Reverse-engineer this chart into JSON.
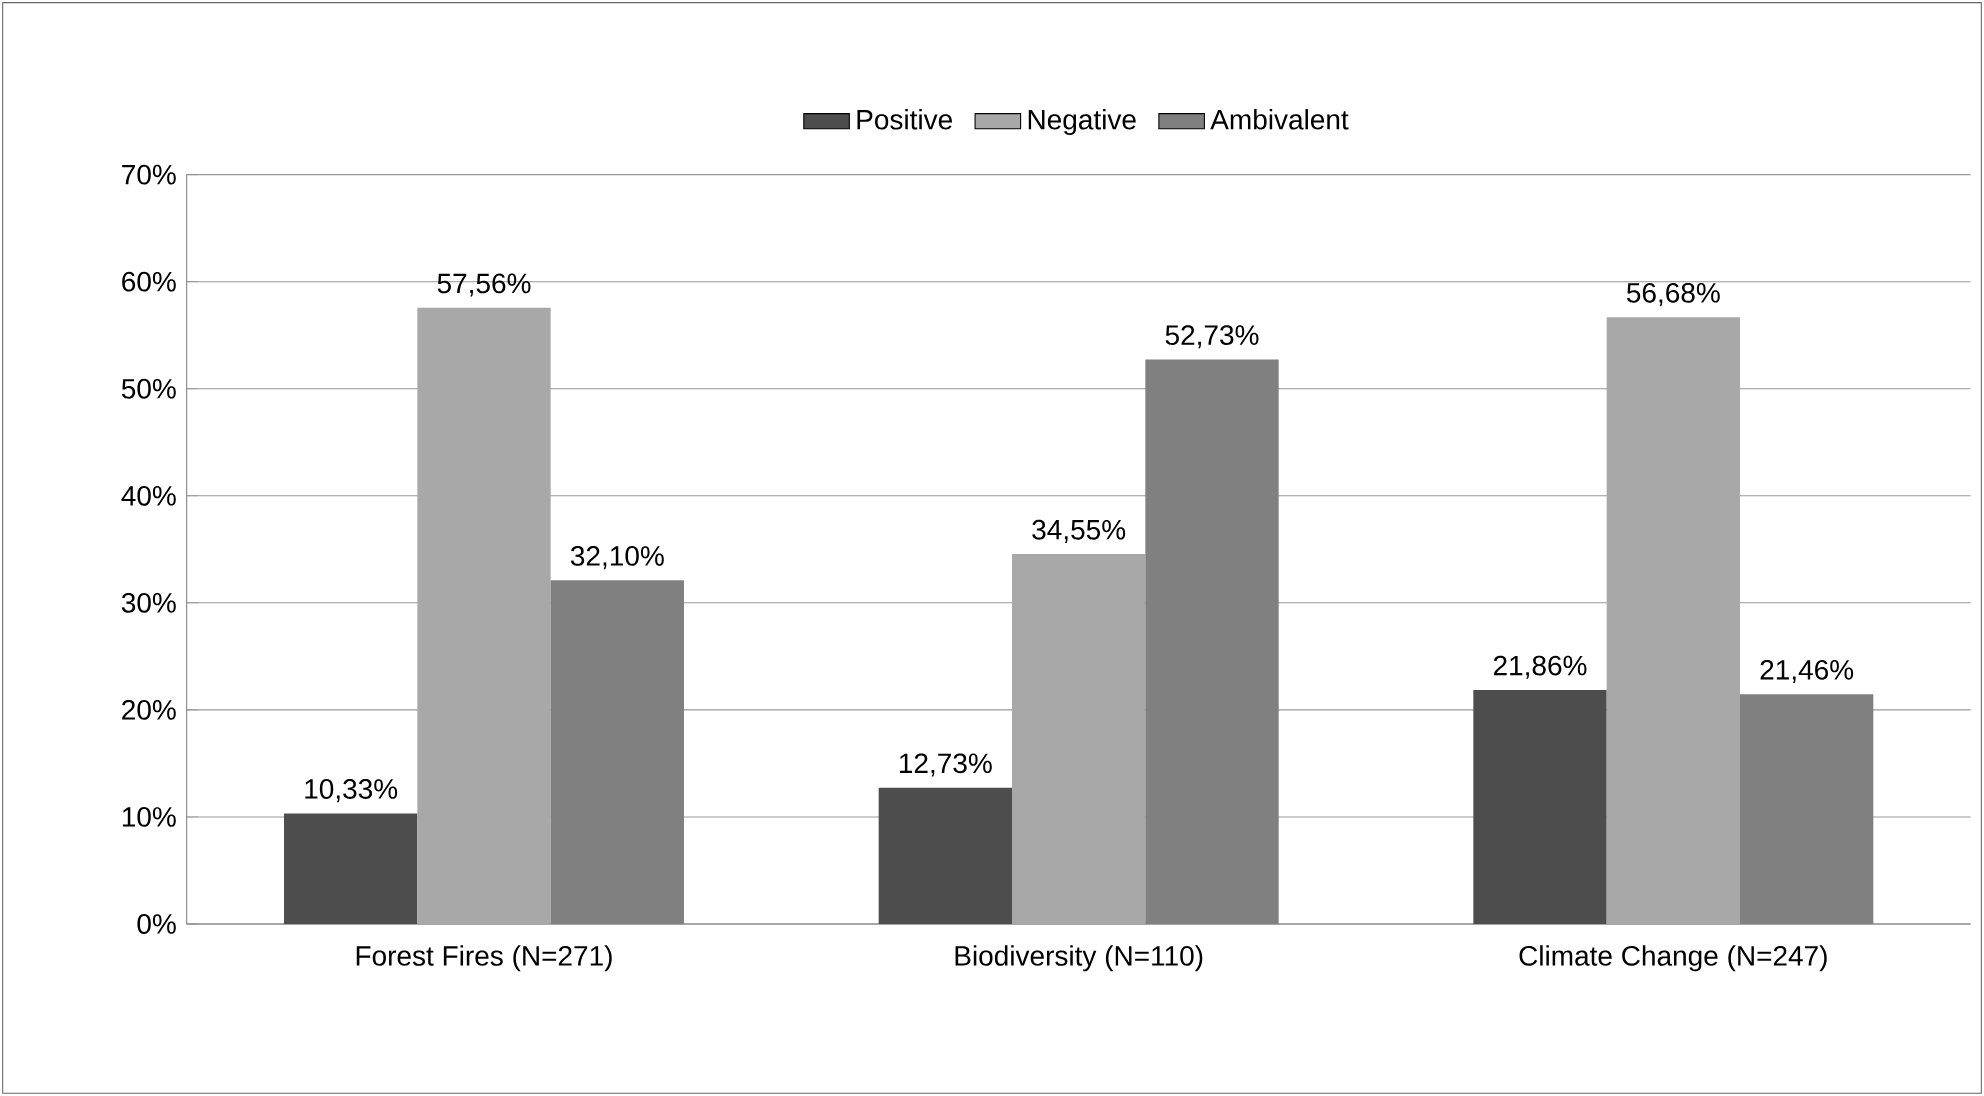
{
  "chart_data": {
    "type": "bar",
    "categories": [
      "Forest Fires (N=271)",
      "Biodiversity (N=110)",
      "Climate Change (N=247)"
    ],
    "series": [
      {
        "name": "Positive",
        "color": "#4d4d4d",
        "values": [
          10.33,
          12.73,
          21.86
        ],
        "value_labels": [
          "10,33%",
          "12,73%",
          "21,86%"
        ]
      },
      {
        "name": "Negative",
        "color": "#a8a8a8",
        "values": [
          57.56,
          34.55,
          56.68
        ],
        "value_labels": [
          "57,56%",
          "34,55%",
          "56,68%"
        ]
      },
      {
        "name": "Ambivalent",
        "color": "#808080",
        "values": [
          32.1,
          52.73,
          21.46
        ],
        "value_labels": [
          "32,10%",
          "52,73%",
          "21,46%"
        ]
      }
    ],
    "ylim": [
      0,
      70
    ],
    "yticks": [
      {
        "value": 0,
        "label": "0%"
      },
      {
        "value": 10,
        "label": "10%"
      },
      {
        "value": 20,
        "label": "20%"
      },
      {
        "value": 30,
        "label": "30%"
      },
      {
        "value": 40,
        "label": "40%"
      },
      {
        "value": 50,
        "label": "50%"
      },
      {
        "value": 60,
        "label": "60%"
      },
      {
        "value": 70,
        "label": "70%"
      }
    ],
    "grid": "y",
    "legend": "top"
  }
}
